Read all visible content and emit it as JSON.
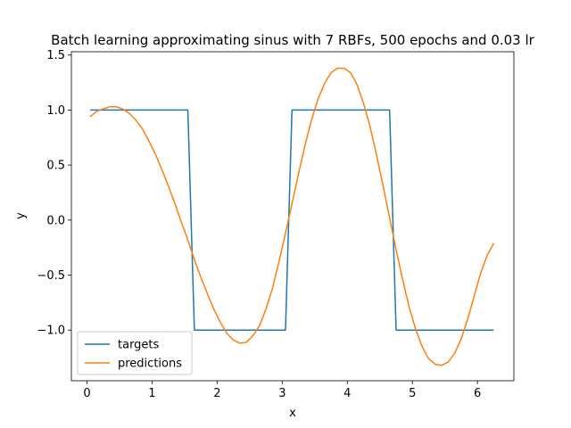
{
  "chart_data": {
    "type": "line",
    "title": "Batch learning approximating sinus with 7 RBFs, 500 epochs and 0.03 lr",
    "xlabel": "x",
    "ylabel": "y",
    "xlim": [
      -0.24,
      6.56
    ],
    "ylim": [
      -1.46,
      1.53
    ],
    "xticks": [
      0,
      1,
      2,
      3,
      4,
      5,
      6
    ],
    "yticks": [
      -1.0,
      -0.5,
      0.0,
      0.5,
      1.0,
      1.5
    ],
    "ytick_labels": [
      "−1.0",
      "−0.5",
      "0.0",
      "0.5",
      "1.0",
      "1.5"
    ],
    "xtick_labels": [
      "0",
      "1",
      "2",
      "3",
      "4",
      "5",
      "6"
    ],
    "grid": false,
    "legend_position": "lower-left",
    "series": [
      {
        "name": "targets",
        "color": "#1f77b4",
        "x": [
          0.05,
          1.55,
          1.65,
          3.05,
          3.15,
          4.65,
          4.75,
          6.25
        ],
        "y": [
          1.0,
          1.0,
          -1.0,
          -1.0,
          1.0,
          1.0,
          -1.0,
          -1.0
        ]
      },
      {
        "name": "predictions",
        "color": "#ff7f0e",
        "x": [
          0.05,
          0.15,
          0.25,
          0.35,
          0.45,
          0.55,
          0.65,
          0.75,
          0.85,
          0.95,
          1.05,
          1.15,
          1.25,
          1.35,
          1.45,
          1.55,
          1.65,
          1.75,
          1.85,
          1.95,
          2.05,
          2.15,
          2.25,
          2.35,
          2.45,
          2.55,
          2.65,
          2.75,
          2.85,
          2.95,
          3.05,
          3.15,
          3.25,
          3.35,
          3.45,
          3.55,
          3.65,
          3.75,
          3.85,
          3.95,
          4.05,
          4.15,
          4.25,
          4.35,
          4.45,
          4.55,
          4.65,
          4.75,
          4.85,
          4.95,
          5.05,
          5.15,
          5.25,
          5.35,
          5.45,
          5.55,
          5.65,
          5.75,
          5.85,
          5.95,
          6.05,
          6.15,
          6.25
        ],
        "y": [
          0.94,
          0.99,
          1.01,
          1.03,
          1.03,
          1.01,
          0.97,
          0.91,
          0.83,
          0.72,
          0.6,
          0.46,
          0.31,
          0.15,
          -0.02,
          -0.18,
          -0.36,
          -0.52,
          -0.67,
          -0.81,
          -0.93,
          -1.03,
          -1.09,
          -1.12,
          -1.11,
          -1.05,
          -0.96,
          -0.81,
          -0.62,
          -0.38,
          -0.12,
          0.15,
          0.42,
          0.68,
          0.91,
          1.1,
          1.24,
          1.34,
          1.38,
          1.38,
          1.34,
          1.23,
          1.06,
          0.85,
          0.59,
          0.31,
          0.02,
          -0.27,
          -0.54,
          -0.79,
          -0.99,
          -1.15,
          -1.26,
          -1.31,
          -1.32,
          -1.29,
          -1.21,
          -1.08,
          -0.9,
          -0.69,
          -0.48,
          -0.32,
          -0.21
        ]
      }
    ]
  }
}
